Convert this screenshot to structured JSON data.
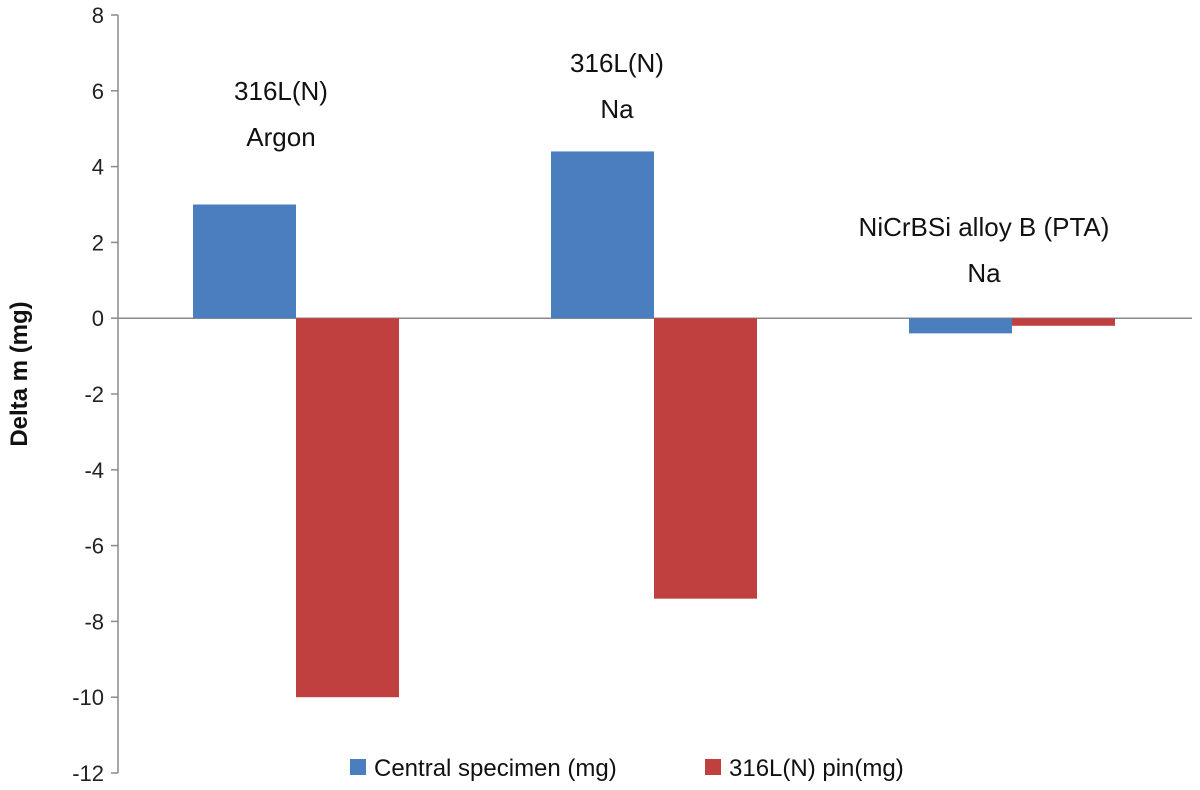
{
  "chart_data": {
    "type": "bar",
    "title": "",
    "xlabel": "",
    "ylabel": "Delta m (mg)",
    "ylim": [
      -12,
      8
    ],
    "yticks": [
      8,
      6,
      4,
      2,
      0,
      -2,
      -4,
      -6,
      -8,
      -10,
      -12
    ],
    "grid": false,
    "legend_position": "bottom",
    "categories": [
      {
        "line1": "316L(N)",
        "line2": "Argon"
      },
      {
        "line1": "316L(N)",
        "line2": "Na"
      },
      {
        "line1": "NiCrBSi alloy B (PTA)",
        "line2": "Na"
      }
    ],
    "series": [
      {
        "name": "Central specimen (mg)",
        "color": "#4a7ebf",
        "values": [
          3.0,
          4.4,
          -0.4
        ]
      },
      {
        "name": "316L(N) pin(mg)",
        "color": "#c0403f",
        "values": [
          -10.0,
          -7.4,
          -0.2
        ]
      }
    ]
  }
}
